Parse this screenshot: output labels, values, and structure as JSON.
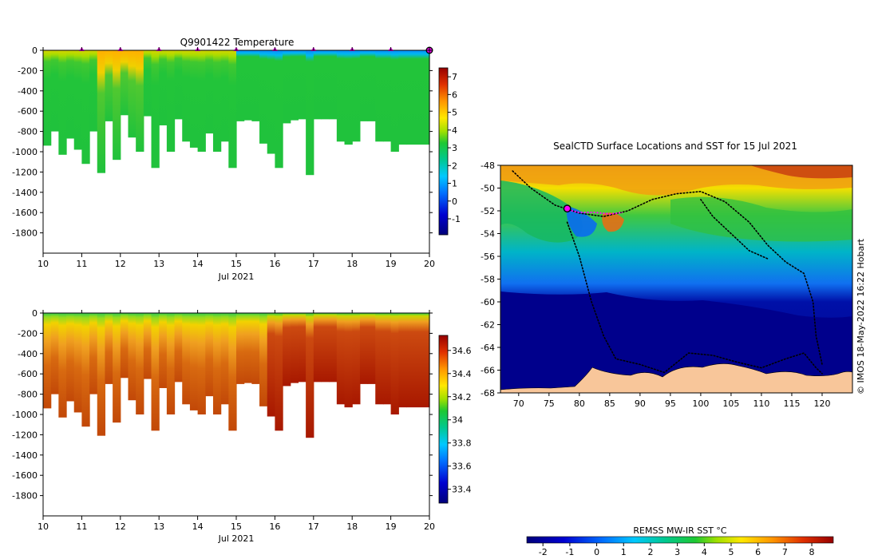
{
  "chart_data": [
    {
      "type": "heatmap",
      "title": "Q9901422  Temperature",
      "xlabel": "Jul 2021",
      "ylabel": "",
      "x_ticks": [
        "10",
        "11",
        "12",
        "13",
        "14",
        "15",
        "16",
        "17",
        "18",
        "19",
        "20"
      ],
      "xlim": [
        10,
        20
      ],
      "y_ticks": [
        "0",
        "-200",
        "-400",
        "-600",
        "-800",
        "-1000",
        "-1200",
        "-1400",
        "-1600",
        "-1800"
      ],
      "ylim": [
        -2000,
        0
      ],
      "colorbar_ticks": [
        "-1",
        "0",
        "1",
        "2",
        "3",
        "4",
        "5",
        "6",
        "7"
      ],
      "colorbar_range": [
        -1.9,
        7.5
      ],
      "surface_markers": [
        11,
        12,
        13,
        14,
        15,
        16,
        17,
        18,
        19
      ],
      "current_marker": 20,
      "profiles": [
        {
          "t": 10.0,
          "depth": -940
        },
        {
          "t": 10.2,
          "depth": -800
        },
        {
          "t": 10.4,
          "depth": -1030
        },
        {
          "t": 10.6,
          "depth": -870
        },
        {
          "t": 10.8,
          "depth": -980
        },
        {
          "t": 11.0,
          "depth": -1120
        },
        {
          "t": 11.2,
          "depth": -800
        },
        {
          "t": 11.4,
          "depth": -1210
        },
        {
          "t": 11.6,
          "depth": -700
        },
        {
          "t": 11.8,
          "depth": -1080
        },
        {
          "t": 12.0,
          "depth": -640
        },
        {
          "t": 12.2,
          "depth": -860
        },
        {
          "t": 12.4,
          "depth": -1000
        },
        {
          "t": 12.6,
          "depth": -650
        },
        {
          "t": 12.8,
          "depth": -1160
        },
        {
          "t": 13.0,
          "depth": -740
        },
        {
          "t": 13.2,
          "depth": -1000
        },
        {
          "t": 13.4,
          "depth": -680
        },
        {
          "t": 13.6,
          "depth": -900
        },
        {
          "t": 13.8,
          "depth": -960
        },
        {
          "t": 14.0,
          "depth": -1000
        },
        {
          "t": 14.2,
          "depth": -820
        },
        {
          "t": 14.4,
          "depth": -1000
        },
        {
          "t": 14.6,
          "depth": -900
        },
        {
          "t": 14.8,
          "depth": -1160
        },
        {
          "t": 15.0,
          "depth": -700
        },
        {
          "t": 15.2,
          "depth": -690
        },
        {
          "t": 15.4,
          "depth": -700
        },
        {
          "t": 15.6,
          "depth": -920
        },
        {
          "t": 15.8,
          "depth": -1020
        },
        {
          "t": 16.0,
          "depth": -1160
        },
        {
          "t": 16.2,
          "depth": -720
        },
        {
          "t": 16.4,
          "depth": -690
        },
        {
          "t": 16.6,
          "depth": -680
        },
        {
          "t": 16.8,
          "depth": -1230
        },
        {
          "t": 17.0,
          "depth": -680
        },
        {
          "t": 17.2,
          "depth": -680
        },
        {
          "t": 17.4,
          "depth": -680
        },
        {
          "t": 17.6,
          "depth": -900
        },
        {
          "t": 17.8,
          "depth": -930
        },
        {
          "t": 18.0,
          "depth": -900
        },
        {
          "t": 18.2,
          "depth": -700
        },
        {
          "t": 18.4,
          "depth": -700
        },
        {
          "t": 18.6,
          "depth": -900
        },
        {
          "t": 18.8,
          "depth": -900
        },
        {
          "t": 19.0,
          "depth": -1000
        },
        {
          "t": 19.2,
          "depth": -930
        },
        {
          "t": 19.4,
          "depth": -930
        }
      ]
    },
    {
      "type": "heatmap",
      "title": "",
      "xlabel": "Jul 2021",
      "ylabel": "",
      "x_ticks": [
        "10",
        "11",
        "12",
        "13",
        "14",
        "15",
        "16",
        "17",
        "18",
        "19",
        "20"
      ],
      "xlim": [
        10,
        20
      ],
      "y_ticks": [
        "0",
        "-200",
        "-400",
        "-600",
        "-800",
        "-1000",
        "-1200",
        "-1400",
        "-1600",
        "-1800"
      ],
      "ylim": [
        -2000,
        0
      ],
      "colorbar_ticks": [
        "33.4",
        "33.6",
        "33.8",
        "34",
        "34.2",
        "34.4",
        "34.6"
      ],
      "colorbar_range": [
        33.28,
        34.73
      ]
    },
    {
      "type": "heatmap",
      "title": "SealCTD Surface Locations and SST for 15 Jul 2021",
      "xlabel": "",
      "ylabel": "",
      "x_ticks": [
        "70",
        "75",
        "80",
        "85",
        "90",
        "95",
        "100",
        "105",
        "110",
        "115",
        "120"
      ],
      "xlim": [
        67,
        125
      ],
      "y_ticks": [
        "-48",
        "-50",
        "-52",
        "-54",
        "-56",
        "-58",
        "-60",
        "-62",
        "-64",
        "-66",
        "-68"
      ],
      "ylim": [
        -68,
        -48
      ],
      "colorbar_label": "REMSS MW-IR SST °C",
      "colorbar_ticks": [
        "-2",
        "-1",
        "0",
        "1",
        "2",
        "3",
        "4",
        "5",
        "6",
        "7",
        "8"
      ],
      "colorbar_range": [
        -2.6,
        8.8
      ],
      "current_position": [
        78.0,
        -51.8
      ],
      "credit": "© IMOS 18-May-2022 16:22 Hobart"
    }
  ]
}
